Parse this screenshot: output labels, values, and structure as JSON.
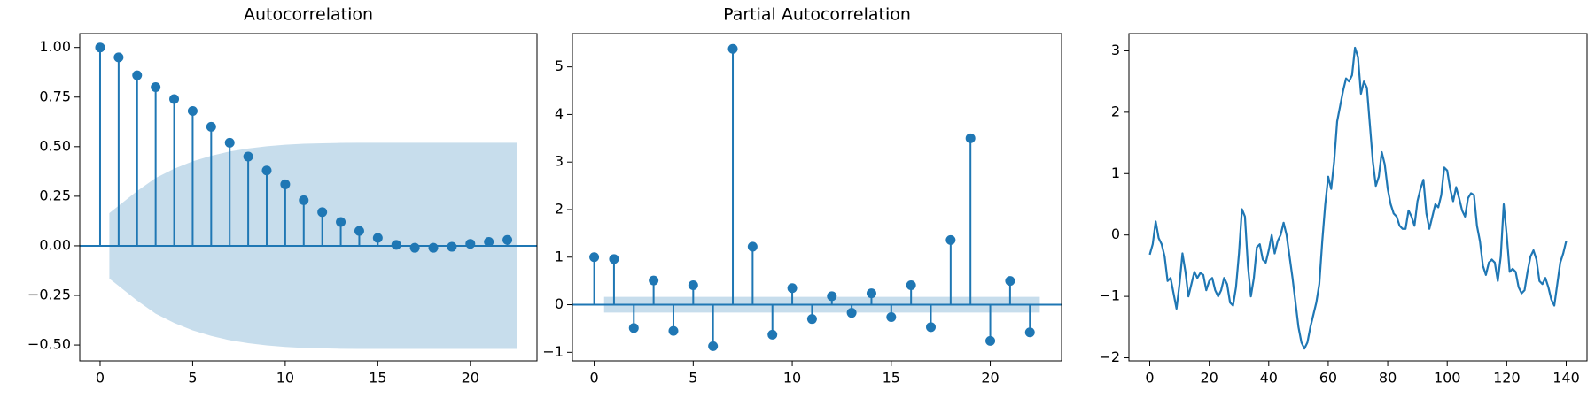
{
  "chart_data": [
    {
      "type": "stem",
      "title": "Autocorrelation",
      "color": "#1f77b4",
      "x": [
        0,
        1,
        2,
        3,
        4,
        5,
        6,
        7,
        8,
        9,
        10,
        11,
        12,
        13,
        14,
        15,
        16,
        17,
        18,
        19,
        20,
        21,
        22
      ],
      "values": [
        1.0,
        0.95,
        0.86,
        0.8,
        0.74,
        0.68,
        0.6,
        0.52,
        0.45,
        0.38,
        0.31,
        0.23,
        0.17,
        0.12,
        0.075,
        0.04,
        0.005,
        -0.01,
        -0.01,
        -0.005,
        0.01,
        0.02,
        0.03
      ],
      "band": {
        "x": [
          0.5,
          2,
          3,
          4,
          5,
          6,
          7,
          8,
          9,
          10,
          11,
          12,
          13,
          14,
          15,
          16,
          17,
          18,
          19,
          20,
          21,
          22.5
        ],
        "upper": [
          0.165,
          0.276,
          0.342,
          0.389,
          0.426,
          0.454,
          0.476,
          0.491,
          0.502,
          0.51,
          0.515,
          0.517,
          0.519,
          0.52,
          0.52,
          0.52,
          0.52,
          0.52,
          0.52,
          0.52,
          0.52,
          0.52
        ],
        "lower": [
          -0.165,
          -0.276,
          -0.342,
          -0.389,
          -0.426,
          -0.454,
          -0.476,
          -0.491,
          -0.502,
          -0.51,
          -0.515,
          -0.517,
          -0.519,
          -0.52,
          -0.52,
          -0.52,
          -0.52,
          -0.52,
          -0.52,
          -0.52,
          -0.52,
          -0.52
        ]
      },
      "xlim": [
        -1.1,
        23.6
      ],
      "ylim": [
        -0.58,
        1.07
      ],
      "xticks": [
        0,
        5,
        10,
        15,
        20
      ],
      "yticks": [
        {
          "value": -0.5,
          "label": "−0.50"
        },
        {
          "value": -0.25,
          "label": "−0.25"
        },
        {
          "value": 0,
          "label": "0.00"
        },
        {
          "value": 0.25,
          "label": "0.25"
        },
        {
          "value": 0.5,
          "label": "0.50"
        },
        {
          "value": 0.75,
          "label": "0.75"
        },
        {
          "value": 1,
          "label": "1.00"
        }
      ]
    },
    {
      "type": "stem",
      "title": "Partial Autocorrelation",
      "color": "#1f77b4",
      "x": [
        0,
        1,
        2,
        3,
        4,
        5,
        6,
        7,
        8,
        9,
        10,
        11,
        12,
        13,
        14,
        15,
        16,
        17,
        18,
        19,
        20,
        21,
        22
      ],
      "values": [
        1.0,
        0.96,
        -0.49,
        0.51,
        -0.55,
        0.41,
        -0.87,
        5.38,
        1.22,
        -0.63,
        0.35,
        -0.3,
        0.18,
        -0.17,
        0.24,
        -0.26,
        0.41,
        -0.47,
        1.36,
        3.5,
        -0.76,
        0.5,
        -0.58
      ],
      "band": {
        "x": [
          0.5,
          22.5
        ],
        "upper": [
          0.165,
          0.165
        ],
        "lower": [
          -0.165,
          -0.165
        ]
      },
      "xlim": [
        -1.1,
        23.6
      ],
      "ylim": [
        -1.18,
        5.7
      ],
      "xticks": [
        0,
        5,
        10,
        15,
        20
      ],
      "yticks": [
        {
          "value": -1,
          "label": "−1"
        },
        0,
        1,
        2,
        3,
        4,
        5
      ]
    },
    {
      "type": "line",
      "color": "#1f77b4",
      "x": [
        0,
        1,
        2,
        3,
        4,
        5,
        6,
        7,
        8,
        9,
        10,
        11,
        12,
        13,
        14,
        15,
        16,
        17,
        18,
        19,
        20,
        21,
        22,
        23,
        24,
        25,
        26,
        27,
        28,
        29,
        30,
        31,
        32,
        33,
        34,
        35,
        36,
        37,
        38,
        39,
        40,
        41,
        42,
        43,
        44,
        45,
        46,
        47,
        48,
        49,
        50,
        51,
        52,
        53,
        54,
        55,
        56,
        57,
        58,
        59,
        60,
        61,
        62,
        63,
        64,
        65,
        66,
        67,
        68,
        69,
        70,
        71,
        72,
        73,
        74,
        75,
        76,
        77,
        78,
        79,
        80,
        81,
        82,
        83,
        84,
        85,
        86,
        87,
        88,
        89,
        90,
        91,
        92,
        93,
        94,
        95,
        96,
        97,
        98,
        99,
        100,
        101,
        102,
        103,
        104,
        105,
        106,
        107,
        108,
        109,
        110,
        111,
        112,
        113,
        114,
        115,
        116,
        117,
        118,
        119,
        120,
        121,
        122,
        123,
        124,
        125,
        126,
        127,
        128,
        129,
        130,
        131,
        132,
        133,
        134,
        135,
        136,
        137,
        138,
        139,
        140
      ],
      "values": [
        -0.32,
        -0.15,
        0.22,
        -0.05,
        -0.15,
        -0.35,
        -0.75,
        -0.7,
        -0.95,
        -1.2,
        -0.8,
        -0.3,
        -0.6,
        -1.0,
        -0.8,
        -0.6,
        -0.7,
        -0.62,
        -0.65,
        -0.9,
        -0.75,
        -0.7,
        -0.9,
        -1.0,
        -0.9,
        -0.7,
        -0.8,
        -1.1,
        -1.15,
        -0.85,
        -0.3,
        0.42,
        0.3,
        -0.5,
        -1.0,
        -0.7,
        -0.2,
        -0.15,
        -0.4,
        -0.45,
        -0.25,
        0.0,
        -0.3,
        -0.1,
        0.0,
        0.2,
        0.0,
        -0.35,
        -0.7,
        -1.1,
        -1.5,
        -1.75,
        -1.85,
        -1.75,
        -1.5,
        -1.3,
        -1.1,
        -0.8,
        -0.1,
        0.5,
        0.95,
        0.75,
        1.2,
        1.85,
        2.1,
        2.35,
        2.55,
        2.5,
        2.6,
        3.05,
        2.9,
        2.3,
        2.5,
        2.4,
        1.8,
        1.2,
        0.8,
        0.95,
        1.35,
        1.15,
        0.75,
        0.5,
        0.35,
        0.3,
        0.15,
        0.1,
        0.1,
        0.4,
        0.3,
        0.15,
        0.55,
        0.75,
        0.9,
        0.35,
        0.1,
        0.3,
        0.5,
        0.45,
        0.65,
        1.1,
        1.05,
        0.75,
        0.55,
        0.78,
        0.6,
        0.4,
        0.3,
        0.6,
        0.68,
        0.65,
        0.15,
        -0.1,
        -0.5,
        -0.65,
        -0.45,
        -0.4,
        -0.45,
        -0.75,
        -0.35,
        0.5,
        0.0,
        -0.6,
        -0.55,
        -0.6,
        -0.85,
        -0.95,
        -0.9,
        -0.6,
        -0.35,
        -0.25,
        -0.4,
        -0.75,
        -0.8,
        -0.7,
        -0.85,
        -1.05,
        -1.15,
        -0.8,
        -0.45,
        -0.3,
        -0.1
      ],
      "xlim": [
        -7,
        147
      ],
      "ylim": [
        -2.05,
        3.28
      ],
      "xticks": [
        0,
        20,
        40,
        60,
        80,
        100,
        120,
        140
      ],
      "yticks": [
        {
          "value": -2,
          "label": "−2"
        },
        {
          "value": -1,
          "label": "−1"
        },
        0,
        1,
        2,
        3
      ]
    }
  ]
}
